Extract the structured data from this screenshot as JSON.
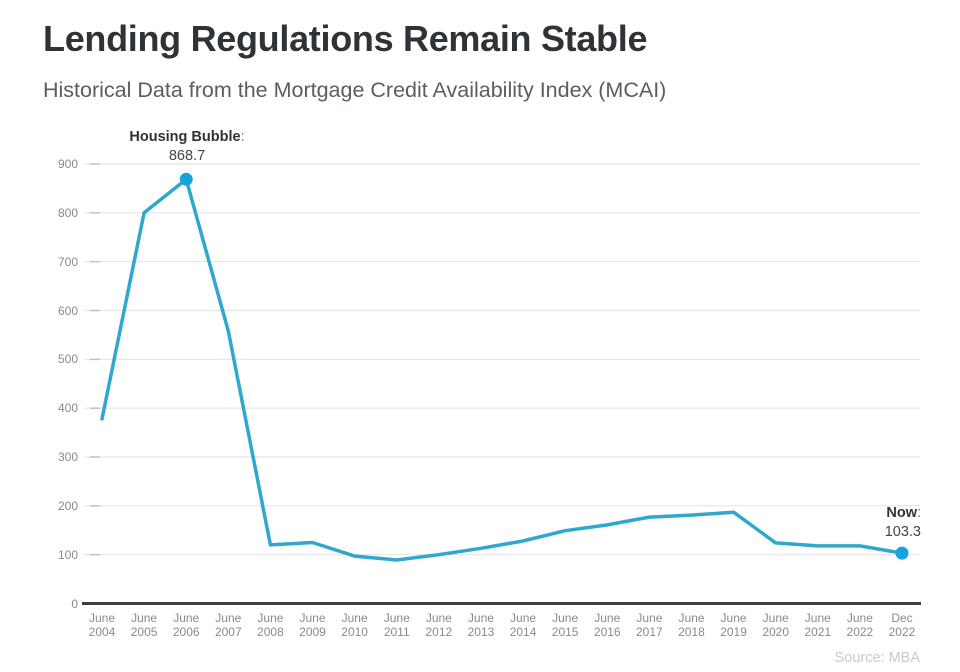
{
  "header": {
    "title": "Lending Regulations Remain Stable",
    "subtitle": "Historical Data from the Mortgage Credit Availability Index (MCAI)"
  },
  "chart_data": {
    "type": "line",
    "title": "Lending Regulations Remain Stable",
    "subtitle": "Historical Data from the Mortgage Credit Availability Index (MCAI)",
    "x_labels": [
      [
        "June",
        "2004"
      ],
      [
        "June",
        "2005"
      ],
      [
        "June",
        "2006"
      ],
      [
        "June",
        "2007"
      ],
      [
        "June",
        "2008"
      ],
      [
        "June",
        "2009"
      ],
      [
        "June",
        "2010"
      ],
      [
        "June",
        "2011"
      ],
      [
        "June",
        "2012"
      ],
      [
        "June",
        "2013"
      ],
      [
        "June",
        "2014"
      ],
      [
        "June",
        "2015"
      ],
      [
        "June",
        "2016"
      ],
      [
        "June",
        "2017"
      ],
      [
        "June",
        "2018"
      ],
      [
        "June",
        "2019"
      ],
      [
        "June",
        "2020"
      ],
      [
        "June",
        "2021"
      ],
      [
        "June",
        "2022"
      ],
      [
        "Dec",
        "2022"
      ]
    ],
    "values": [
      378,
      800,
      868.7,
      558,
      120,
      125,
      97,
      89,
      100,
      113,
      128,
      149,
      161,
      177,
      181,
      187,
      124,
      118,
      118,
      103.3
    ],
    "y_ticks": [
      0,
      100,
      200,
      300,
      400,
      500,
      600,
      700,
      800,
      900
    ],
    "ylim": [
      0,
      950
    ],
    "grid": "horizontal",
    "legend": "none",
    "line_color": "#2ea8cc",
    "marker_color": "#17a2dc",
    "annotations": [
      {
        "point_index": 2,
        "label": "Housing Bubble",
        "suffix": ":",
        "value_label": "868.7"
      },
      {
        "point_index": 19,
        "label": "Now",
        "suffix": ":",
        "value_label": "103.3"
      }
    ]
  },
  "footer": {
    "source": "Source: MBA"
  }
}
